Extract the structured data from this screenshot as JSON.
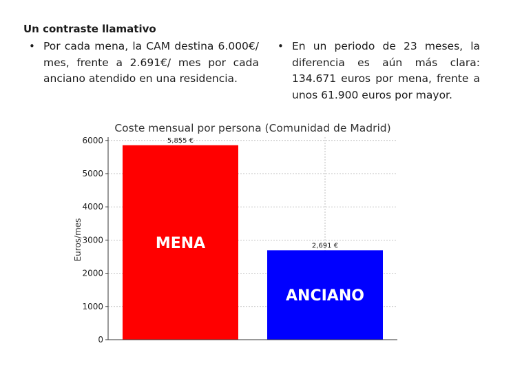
{
  "section": {
    "heading": "Un contraste llamativo",
    "bullets_left": [
      "Por cada mena, la CAM destina 6.000€/ mes, frente a 2.691€/ mes por cada anciano atendido en una residencia."
    ],
    "bullets_right": [
      "En un periodo de 23 meses, la diferencia es aún más clara: 134.671 euros por mena, frente a unos 61.900 euros por mayor."
    ]
  },
  "chart_data": {
    "type": "bar",
    "title": "Coste mensual por persona (Comunidad de Madrid)",
    "ylabel": "Euros/mes",
    "xlabel": "",
    "ylim": [
      0,
      6100
    ],
    "yticks": [
      0,
      1000,
      2000,
      3000,
      4000,
      5000,
      6000
    ],
    "grid": true,
    "categories": [
      "MENA",
      "ANCIANO"
    ],
    "values": [
      5855,
      2691
    ],
    "value_labels": [
      "5,855 €",
      "2,691 €"
    ],
    "colors": [
      "#ff0000",
      "#0000ff"
    ]
  }
}
